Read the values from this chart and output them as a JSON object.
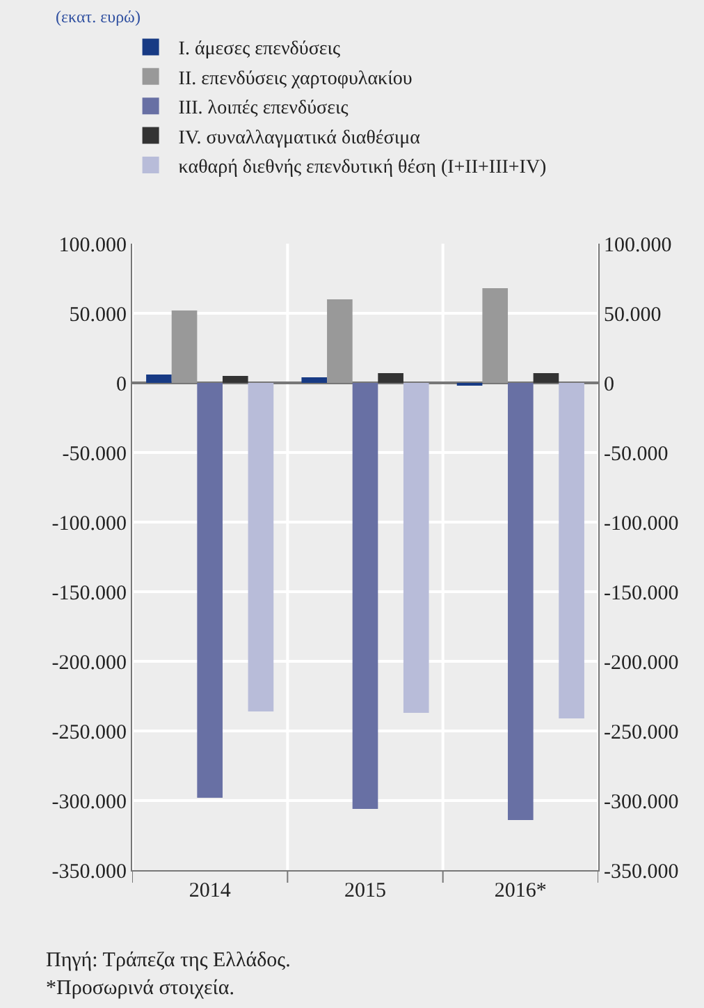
{
  "chart_data": {
    "type": "bar",
    "subtitle": "(εκατ. ευρώ)",
    "categories": [
      "2014",
      "2015",
      "2016*"
    ],
    "series": [
      {
        "name": "I. άμεσες επενδύσεις",
        "color": "#173a84",
        "values": [
          6000,
          4000,
          -2000
        ]
      },
      {
        "name": "II. επενδύσεις χαρτοφυλακίου",
        "color": "#999999",
        "values": [
          52000,
          60000,
          68000
        ]
      },
      {
        "name": "III. λοιπές επενδύσεις",
        "color": "#6870a4",
        "values": [
          -298000,
          -306000,
          -314000
        ]
      },
      {
        "name": "IV. συναλλαγματικά διαθέσιμα",
        "color": "#333333",
        "values": [
          5000,
          7000,
          7000
        ]
      },
      {
        "name": "καθαρή διεθνής επενδυτική θέση (I+II+III+IV)",
        "color": "#b8bcd9",
        "values": [
          -236000,
          -237000,
          -241000
        ]
      }
    ],
    "ylim": [
      -350000,
      100000
    ],
    "yticks": [
      {
        "value": -350000,
        "label": "-350.000"
      },
      {
        "value": -300000,
        "label": "-300.000"
      },
      {
        "value": -250000,
        "label": "-250.000"
      },
      {
        "value": -200000,
        "label": "-200.000"
      },
      {
        "value": -150000,
        "label": "-150.000"
      },
      {
        "value": -100000,
        "label": "-100.000"
      },
      {
        "value": -50000,
        "label": "-50.000"
      },
      {
        "value": 0,
        "label": "0"
      },
      {
        "value": 50000,
        "label": "50.000"
      },
      {
        "value": 100000,
        "label": "100.000"
      }
    ],
    "y2lim": [
      -350000,
      100000
    ],
    "y2ticks": [
      {
        "value": -350000,
        "label": "-350.000"
      },
      {
        "value": -300000,
        "label": "-300.000"
      },
      {
        "value": -250000,
        "label": "-250.000"
      },
      {
        "value": -200000,
        "label": "-200.000"
      },
      {
        "value": -150000,
        "label": "-150.000"
      },
      {
        "value": -100000,
        "label": "-100.000"
      },
      {
        "value": -50000,
        "label": "-50.000"
      },
      {
        "value": 0,
        "label": "0"
      },
      {
        "value": 50000,
        "label": "50.000"
      },
      {
        "value": 100000,
        "label": "100.000"
      }
    ],
    "grid": true,
    "legend": "top",
    "annotations": [
      "Πηγή: Τράπεζα της Ελλάδος.",
      "*Προσωρινά στοιχεία."
    ]
  }
}
